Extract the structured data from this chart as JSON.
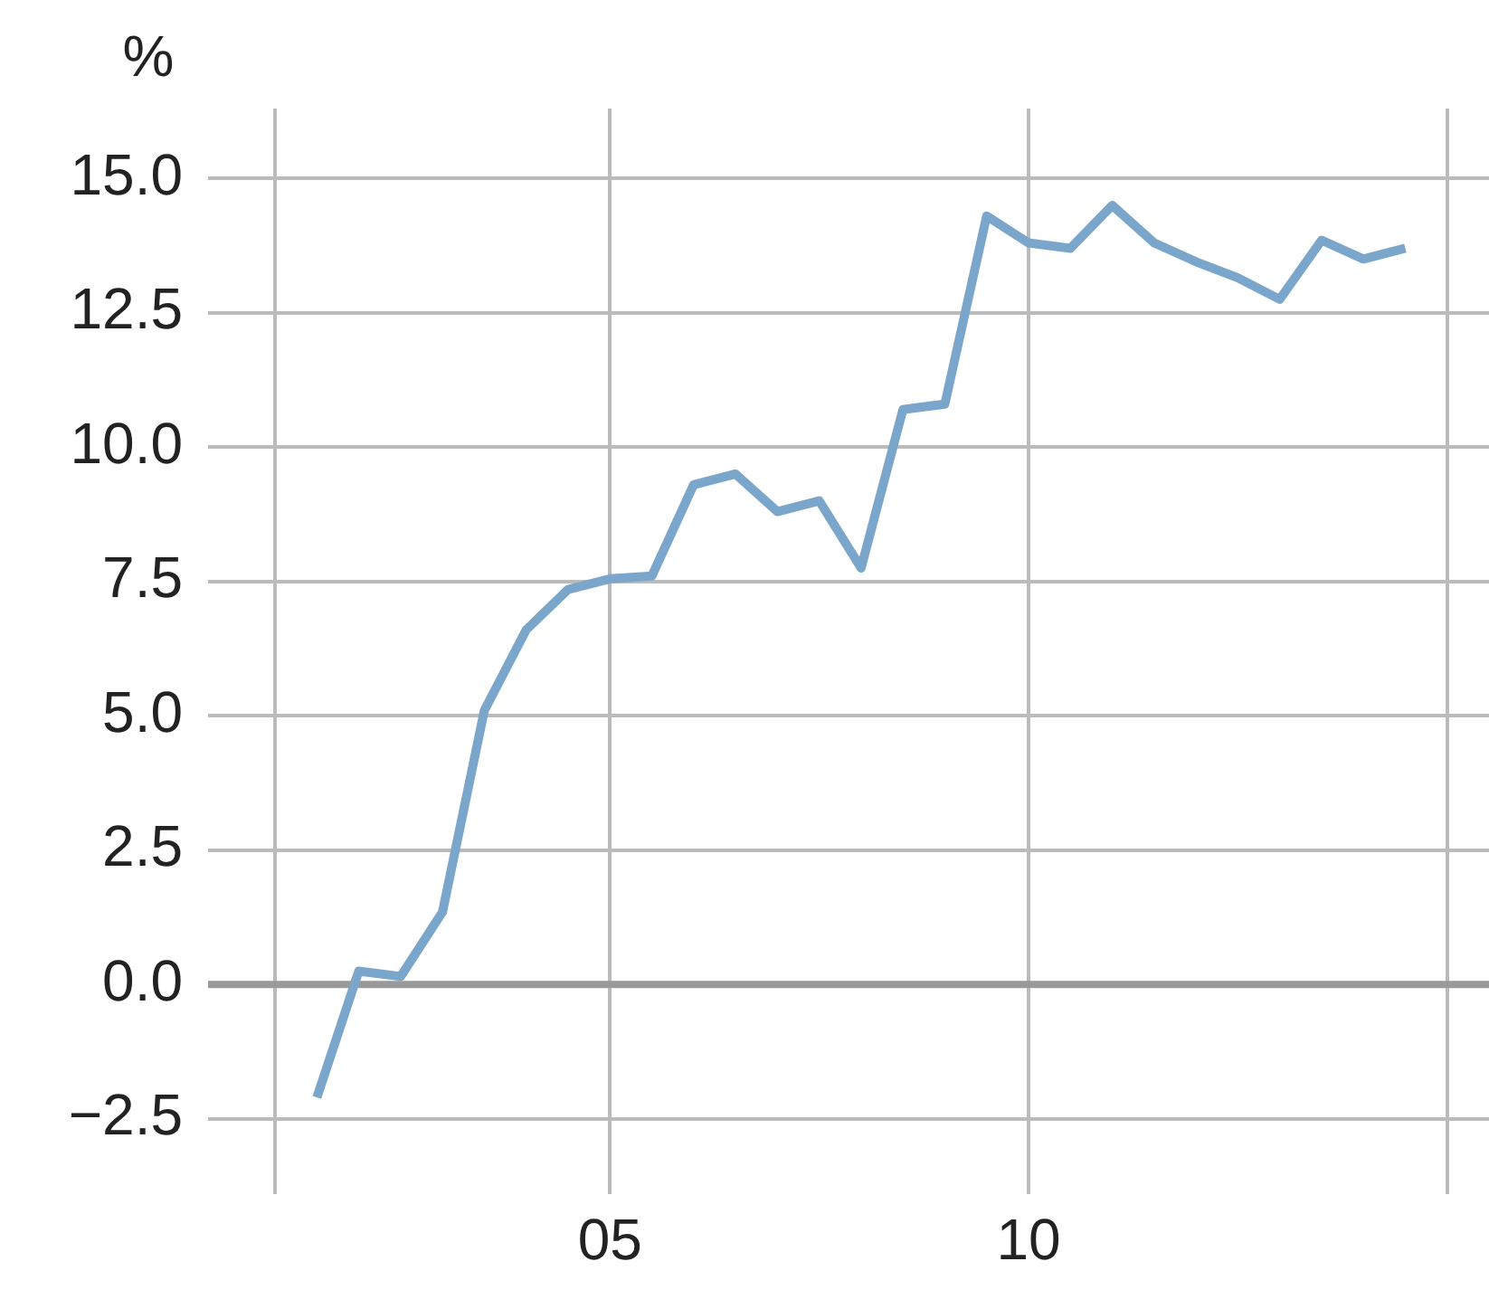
{
  "chart_data": {
    "type": "line",
    "ylabel": "%",
    "x": [
      2001.5,
      2002,
      2002.5,
      2003,
      2003.5,
      2004,
      2004.5,
      2005,
      2005.5,
      2006,
      2006.5,
      2007,
      2007.5,
      2008,
      2008.5,
      2009,
      2009.5,
      2010,
      2010.5,
      2011,
      2011.5,
      2012,
      2012.5,
      2013,
      2013.5,
      2014,
      2014.5
    ],
    "series": [
      {
        "color": "#7ba6cb",
        "values": [
          -2.1,
          0.25,
          0.15,
          1.35,
          5.1,
          6.6,
          7.35,
          7.55,
          7.6,
          9.3,
          9.5,
          8.8,
          9.0,
          7.75,
          10.7,
          10.8,
          14.3,
          13.8,
          13.7,
          14.5,
          13.8,
          13.45,
          13.15,
          12.75,
          13.85,
          13.5,
          13.7
        ]
      }
    ],
    "xlim": [
      2000.2,
      2015.5
    ],
    "xticks": [
      {
        "value": 2001,
        "label": null
      },
      {
        "value": 2005,
        "label": "05"
      },
      {
        "value": 2010,
        "label": "10"
      },
      {
        "value": 2015,
        "label": null
      }
    ],
    "ylim": [
      -3.9,
      16.3
    ],
    "yticks": [
      {
        "value": -2.5,
        "label": "−2.5"
      },
      {
        "value": 0,
        "label": "0.0"
      },
      {
        "value": 2.5,
        "label": "2.5"
      },
      {
        "value": 5,
        "label": "5.0"
      },
      {
        "value": 7.5,
        "label": "7.5"
      },
      {
        "value": 10,
        "label": "10.0"
      },
      {
        "value": 12.5,
        "label": "12.5"
      },
      {
        "value": 15,
        "label": "15.0"
      }
    ],
    "ref_lines": [
      {
        "axis": "y",
        "value": 0,
        "color": "#999999"
      }
    ],
    "grid": true,
    "legend": false,
    "marker": "none",
    "line_style": "solid"
  }
}
